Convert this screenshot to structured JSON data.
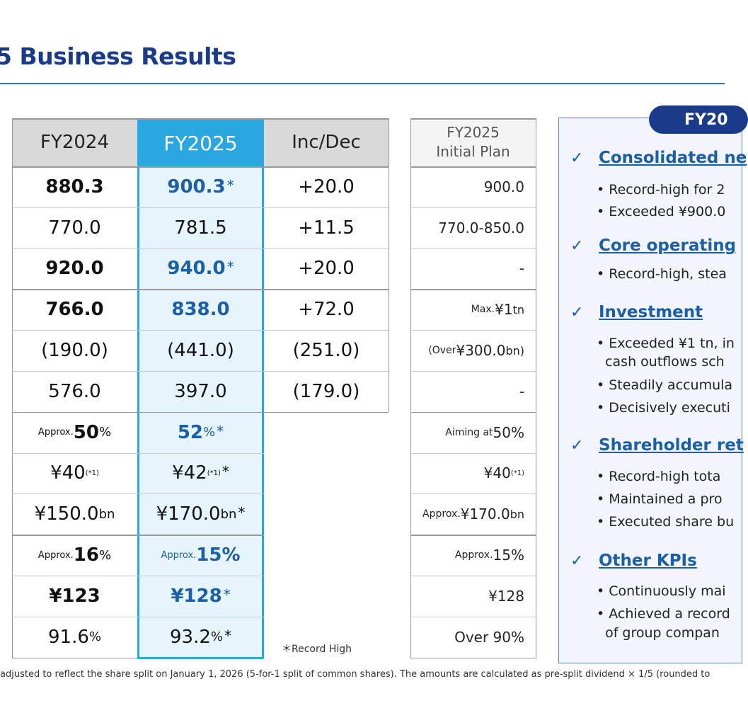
{
  "title": "5 Business Results",
  "table": {
    "headers": {
      "fy2024": "FY2024",
      "fy2025": "FY2025",
      "incdec": "Inc/Dec"
    },
    "rows": [
      {
        "fy2024": "880.3",
        "fy2025": "900.3",
        "fy2025_ast": "*",
        "incdec": "+20.0",
        "plan": "900.0"
      },
      {
        "fy2024": "770.0",
        "fy2025": "781.5",
        "fy2025_ast": "",
        "incdec": "+11.5",
        "plan": "770.0-850.0"
      },
      {
        "fy2024": "920.0",
        "fy2025": "940.0",
        "fy2025_ast": "*",
        "incdec": "+20.0",
        "plan": "-"
      },
      {
        "fy2024": "766.0",
        "fy2025": "838.0",
        "fy2025_ast": "",
        "incdec": "+72.0",
        "plan_prefix": "Max. ",
        "plan": "¥1",
        "plan_suffix": " tn"
      },
      {
        "fy2024": "(190.0)",
        "fy2025": "(441.0)",
        "fy2025_ast": "",
        "incdec": "(251.0)",
        "plan_prefix": "(Over ",
        "plan": "¥300.0",
        "plan_suffix": " bn)"
      },
      {
        "fy2024": "576.0",
        "fy2025": "397.0",
        "fy2025_ast": "",
        "incdec": "(179.0)",
        "plan": "-"
      },
      {
        "fy2024_prefix": "Approx. ",
        "fy2024": "50",
        "fy2024_suffix": "%",
        "fy2025": "52",
        "fy2025_suffix": "%",
        "fy2025_ast": "*",
        "plan_prefix": "Aiming at ",
        "plan": "50%"
      },
      {
        "fy2024": "¥40",
        "fy2024_sup": "(*1)",
        "fy2025": "¥42",
        "fy2025_sup": "(*1)",
        "fy2025_ast": "*",
        "plan": "¥40",
        "plan_sup": "(*1)"
      },
      {
        "fy2024": "¥150.0",
        "fy2024_suffix": " bn",
        "fy2025": "¥170.0",
        "fy2025_suffix": " bn",
        "fy2025_ast": "*",
        "plan_prefix": "Approx. ",
        "plan": "¥170.0",
        "plan_suffix": " bn"
      },
      {
        "fy2024_prefix": "Approx. ",
        "fy2024": "16",
        "fy2024_suffix": "%",
        "fy2025_prefix": "Approx. ",
        "fy2025": "15%",
        "fy2025_ast": "",
        "plan_prefix": "Approx.",
        "plan": "15%"
      },
      {
        "fy2024": "¥123",
        "fy2025": "¥128",
        "fy2025_ast": "*",
        "plan": "¥128"
      },
      {
        "fy2024": "91.6",
        "fy2024_suffix": "%",
        "fy2025": "93.2",
        "fy2025_suffix": "%",
        "fy2025_ast": "*",
        "plan": "Over 90%"
      }
    ]
  },
  "plan_header": {
    "line1": "FY2025",
    "line2": "Initial Plan"
  },
  "record_note": "＊Record High",
  "panel": {
    "pill": "FY20",
    "check": "✓",
    "sections": [
      {
        "title": "Consolidated ne",
        "bullets": [
          "• Record-high for 2",
          "• Exceeded ¥900.0"
        ]
      },
      {
        "title": "Core operating",
        "bullets": [
          "• Record-high, stea"
        ]
      },
      {
        "title": "Investment",
        "bullets": [
          "• Exceeded ¥1 tn, in",
          "  cash outflows sch",
          "• Steadily accumula",
          "• Decisively executi"
        ]
      },
      {
        "title": "Shareholder ret",
        "bullets": [
          "• Record-high tota",
          "• Maintained a pro",
          "• Executed share bu"
        ]
      },
      {
        "title": "Other KPIs",
        "bullets": [
          "• Continuously mai",
          "• Achieved a record",
          "  of group compan"
        ]
      }
    ]
  },
  "footnote": "adjusted to reflect the share split on January 1, 2026 (5-for-1 split of common shares). The amounts are calculated as pre-split dividend × 1/5 (rounded to"
}
